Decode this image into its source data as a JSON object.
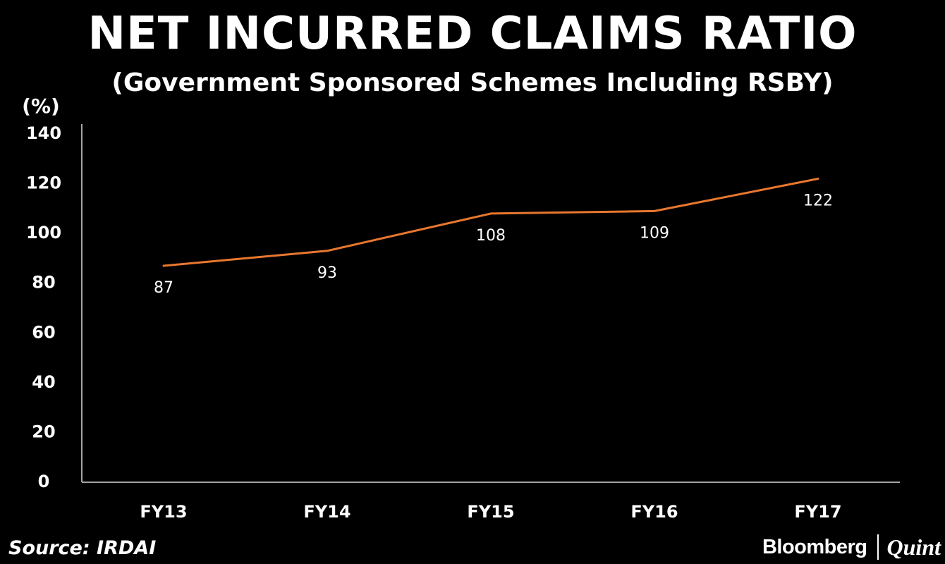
{
  "header": {
    "title": "NET INCURRED CLAIMS RATIO",
    "subtitle": "(Government Sponsored Schemes Including RSBY)"
  },
  "footer": {
    "source": "Source: IRDAI",
    "brand_primary": "Bloomberg",
    "brand_secondary": "Quint"
  },
  "colors": {
    "background": "#000000",
    "text": "#ffffff",
    "line": "#e8772e",
    "axis": "#d9d9d9"
  },
  "chart_data": {
    "type": "line",
    "title": "NET INCURRED CLAIMS RATIO",
    "subtitle": "(Government Sponsored Schemes Including RSBY)",
    "ylabel": "(%)",
    "xlabel": "",
    "categories": [
      "FY13",
      "FY14",
      "FY15",
      "FY16",
      "FY17"
    ],
    "series": [
      {
        "values": [
          87,
          93,
          108,
          109,
          122
        ]
      }
    ],
    "data_labels": [
      "87",
      "93",
      "108",
      "109",
      "122"
    ],
    "yticks": [
      "0",
      "20",
      "40",
      "60",
      "80",
      "100",
      "120",
      "140"
    ],
    "ylim": [
      0,
      140
    ],
    "grid": false,
    "legend": "none"
  }
}
